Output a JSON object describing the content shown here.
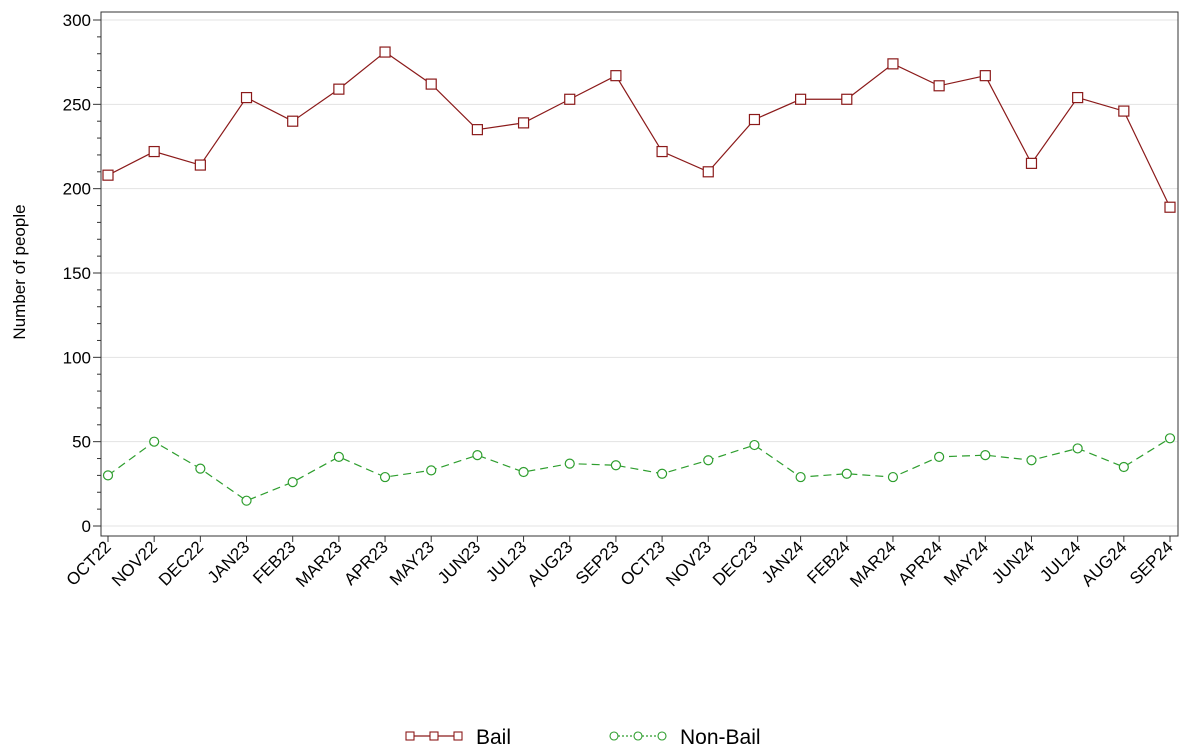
{
  "chart_data": {
    "type": "line",
    "title": "",
    "xlabel": "",
    "ylabel": "Number of people",
    "ylim": [
      0,
      300
    ],
    "yticks": [
      0,
      50,
      100,
      150,
      200,
      250,
      300
    ],
    "grid": true,
    "legend_position": "bottom",
    "categories": [
      "OCT22",
      "NOV22",
      "DEC22",
      "JAN23",
      "FEB23",
      "MAR23",
      "APR23",
      "MAY23",
      "JUN23",
      "JUL23",
      "AUG23",
      "SEP23",
      "OCT23",
      "NOV23",
      "DEC23",
      "JAN24",
      "FEB24",
      "MAR24",
      "APR24",
      "MAY24",
      "JUN24",
      "JUL24",
      "AUG24",
      "SEP24"
    ],
    "series": [
      {
        "name": "Bail",
        "color": "#8b1a1a",
        "marker": "square",
        "line_style": "solid",
        "values": [
          208,
          222,
          214,
          254,
          240,
          259,
          281,
          262,
          235,
          239,
          253,
          267,
          222,
          210,
          241,
          253,
          253,
          274,
          261,
          267,
          215,
          254,
          246,
          189
        ]
      },
      {
        "name": "Non-Bail",
        "color": "#2e9e2e",
        "marker": "circle",
        "line_style": "dashed",
        "values": [
          30,
          50,
          34,
          15,
          26,
          41,
          29,
          33,
          42,
          32,
          37,
          36,
          31,
          39,
          48,
          29,
          31,
          29,
          41,
          42,
          39,
          46,
          35,
          52
        ]
      }
    ]
  }
}
